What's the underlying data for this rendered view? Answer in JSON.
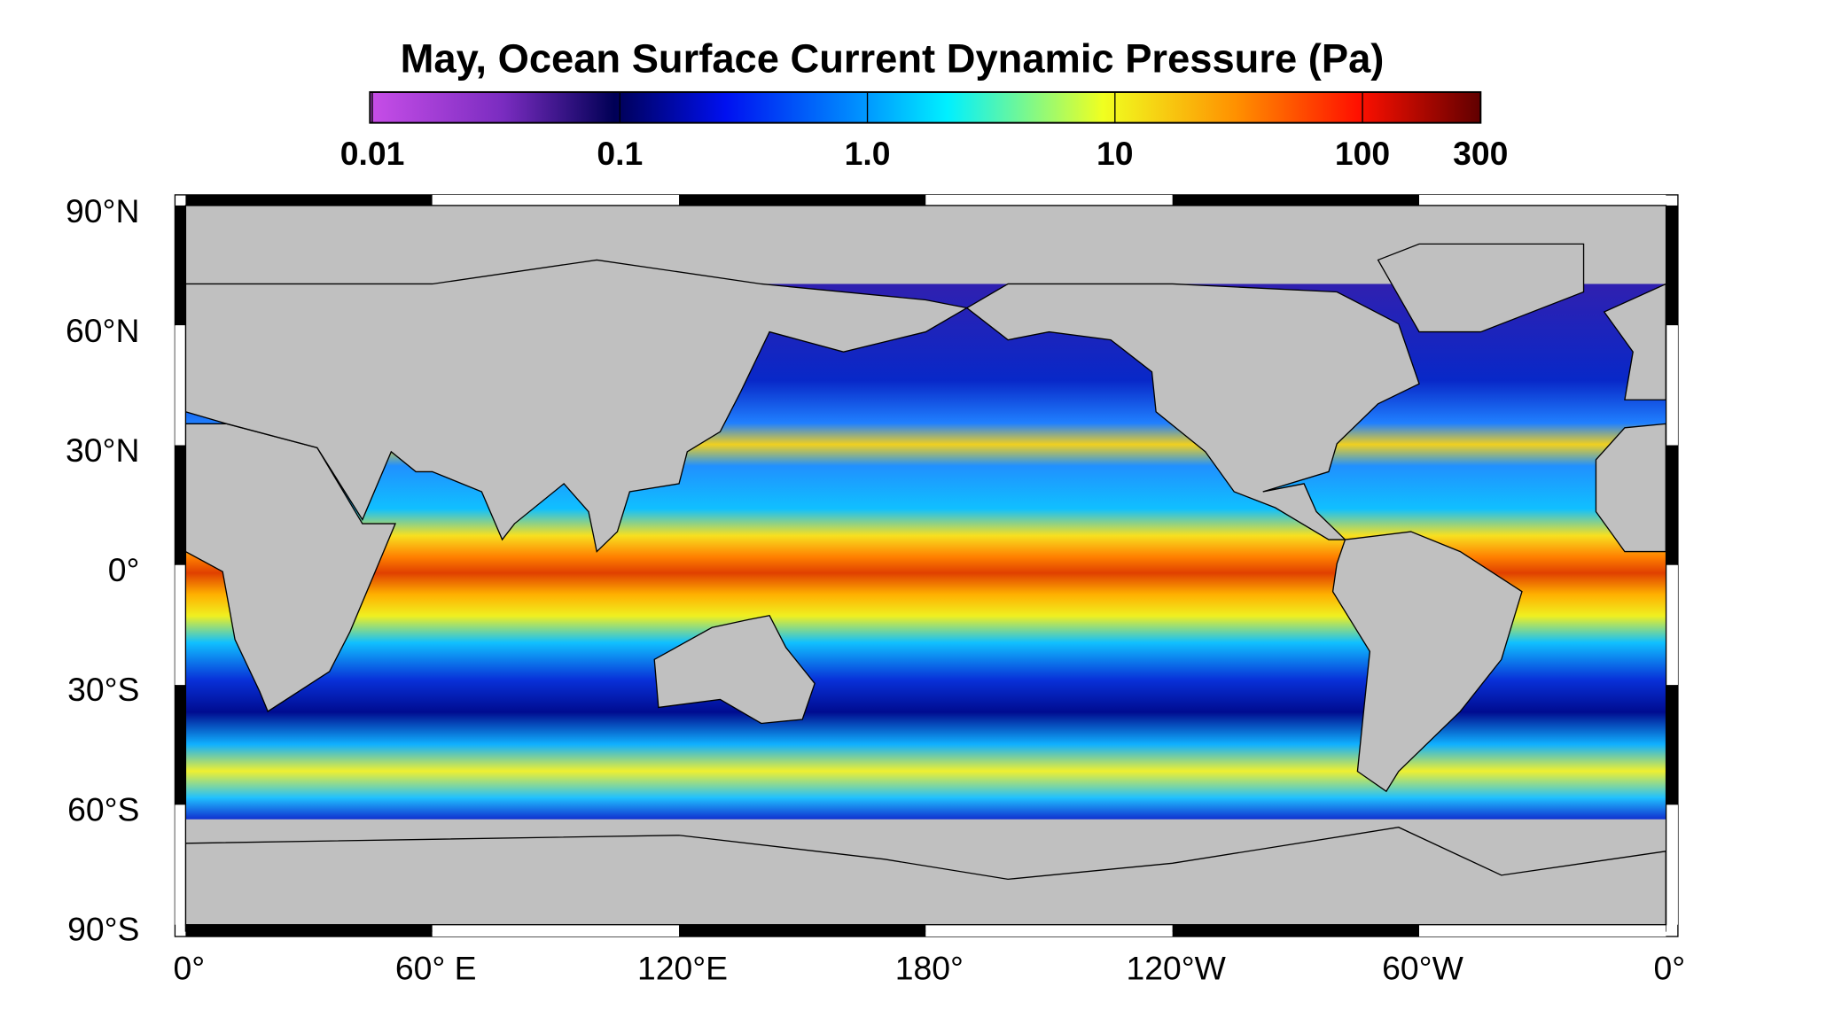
{
  "title": "May, Ocean Surface Current Dynamic Pressure (Pa)",
  "colorbar": {
    "ticks": [
      0.01,
      0.1,
      {
        "value": 1,
        "label": "1.0"
      },
      10,
      100,
      300
    ]
  },
  "lat_labels": [
    "90°N",
    "60°N",
    "30°N",
    "0°",
    "30°S",
    "60°S",
    "90°S"
  ],
  "lon_labels": [
    "0°",
    "60° E",
    "120°E",
    "180°",
    "120°W",
    "60°W",
    "0°"
  ]
}
